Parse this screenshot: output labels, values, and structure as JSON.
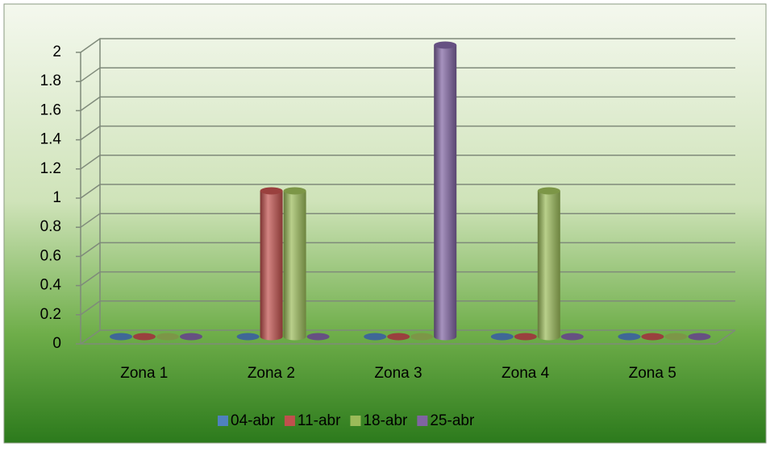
{
  "chart_data": {
    "type": "bar3d",
    "categories": [
      "Zona 1",
      "Zona 2",
      "Zona 3",
      "Zona 4",
      "Zona 5"
    ],
    "series": [
      {
        "name": "04-abr",
        "color": "#4f81bd",
        "values": [
          0,
          0,
          0,
          0,
          0
        ]
      },
      {
        "name": "11-abr",
        "color": "#c0504d",
        "values": [
          0,
          1,
          0,
          0,
          0
        ]
      },
      {
        "name": "18-abr",
        "color": "#9bbb59",
        "values": [
          0,
          1,
          0,
          1,
          0
        ]
      },
      {
        "name": "25-abr",
        "color": "#8064a2",
        "values": [
          0,
          0,
          2,
          0,
          0
        ]
      }
    ],
    "ylim": [
      0,
      2
    ],
    "yticks": [
      0,
      0.2,
      0.4,
      0.6,
      0.8,
      1,
      1.2,
      1.4,
      1.6,
      1.8,
      2
    ],
    "grid": true,
    "legend": "bottom"
  }
}
